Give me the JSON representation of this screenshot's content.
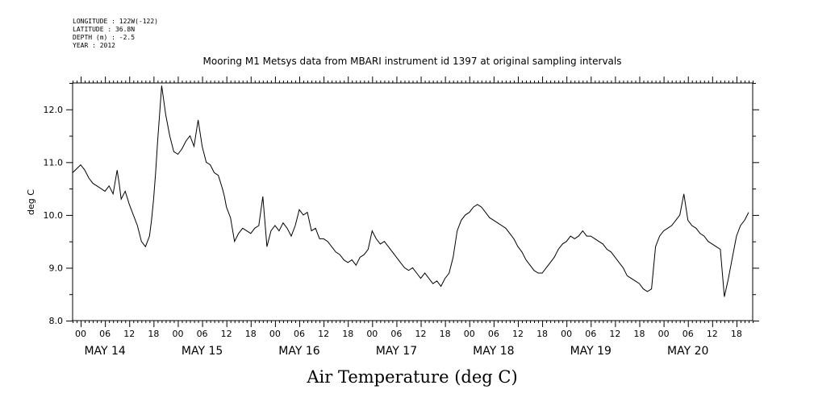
{
  "header": {
    "longitude": "LONGITUDE : 122W(-122)",
    "latitude": "LATITUDE : 36.8N",
    "depth": "DEPTH (m) : -2.5",
    "year": "YEAR : 2012"
  },
  "chart_data": {
    "type": "line",
    "title": "Mooring M1 Metsys data from MBARI instrument id 1397 at original sampling intervals",
    "ylabel": "deg C",
    "footer_label": "Air Temperature (deg C)",
    "ylim": [
      8.0,
      12.5
    ],
    "xlim_hours": [
      -2,
      166
    ],
    "y_ticks": [
      "8.0",
      "9.0",
      "10.0",
      "11.0",
      "12.0"
    ],
    "hour_tick_labels": [
      "00",
      "06",
      "12",
      "18"
    ],
    "day_labels": [
      "MAY 14",
      "MAY 15",
      "MAY 16",
      "MAY 17",
      "MAY 18",
      "MAY 19",
      "MAY 20"
    ],
    "grid": false,
    "series": [
      {
        "x_hours": [
          -2,
          0,
          1,
          2,
          3,
          4,
          5,
          6,
          7,
          8,
          9,
          9.5,
          10,
          11,
          12,
          13,
          14,
          15,
          16,
          17,
          17.5,
          18,
          18.5,
          19,
          20,
          21,
          22,
          23,
          24,
          25,
          26,
          27,
          28,
          29,
          30,
          31,
          32,
          33,
          34,
          35,
          35.5,
          36,
          37,
          38,
          39,
          40,
          41,
          42,
          43,
          44,
          45,
          46,
          47,
          48,
          49,
          50,
          51,
          52,
          53,
          54,
          55,
          56,
          57,
          58,
          59,
          60,
          61,
          62,
          63,
          64,
          65,
          66,
          67,
          68,
          69,
          70,
          71,
          72,
          73,
          74,
          75,
          76,
          77,
          78,
          79,
          80,
          81,
          82,
          83,
          84,
          85,
          86,
          87,
          88,
          89,
          90,
          91,
          92,
          93,
          94,
          95,
          96,
          97,
          98,
          99,
          100,
          101,
          102,
          103,
          104,
          105,
          106,
          107,
          108,
          109,
          110,
          111,
          112,
          113,
          114,
          115,
          116,
          117,
          118,
          119,
          120,
          121,
          122,
          123,
          124,
          125,
          126,
          127,
          128,
          129,
          130,
          131,
          132,
          133,
          134,
          135,
          136,
          137,
          138,
          139,
          140,
          141,
          142,
          143,
          144,
          145,
          146,
          147,
          148,
          149,
          150,
          151,
          152,
          153,
          154,
          155,
          156,
          157,
          158,
          159,
          160,
          161,
          162,
          163,
          164,
          165
        ],
        "values": [
          10.8,
          10.95,
          10.85,
          10.7,
          10.6,
          10.55,
          10.5,
          10.45,
          10.55,
          10.4,
          10.85,
          10.6,
          10.3,
          10.45,
          10.2,
          10.0,
          9.8,
          9.5,
          9.4,
          9.6,
          9.9,
          10.3,
          10.8,
          11.4,
          12.45,
          11.9,
          11.5,
          11.2,
          11.15,
          11.25,
          11.4,
          11.5,
          11.3,
          11.8,
          11.3,
          11.0,
          10.95,
          10.8,
          10.75,
          10.5,
          10.35,
          10.15,
          9.95,
          9.5,
          9.65,
          9.75,
          9.7,
          9.65,
          9.75,
          9.8,
          10.35,
          9.4,
          9.7,
          9.8,
          9.7,
          9.85,
          9.75,
          9.6,
          9.8,
          10.1,
          10.0,
          10.05,
          9.7,
          9.75,
          9.55,
          9.55,
          9.5,
          9.4,
          9.3,
          9.25,
          9.15,
          9.1,
          9.15,
          9.05,
          9.2,
          9.25,
          9.35,
          9.7,
          9.55,
          9.45,
          9.5,
          9.4,
          9.3,
          9.2,
          9.1,
          9.0,
          8.95,
          9.0,
          8.9,
          8.8,
          8.9,
          8.8,
          8.7,
          8.75,
          8.65,
          8.8,
          8.9,
          9.2,
          9.7,
          9.9,
          10.0,
          10.05,
          10.15,
          10.2,
          10.15,
          10.05,
          9.95,
          9.9,
          9.85,
          9.8,
          9.75,
          9.65,
          9.55,
          9.4,
          9.3,
          9.15,
          9.05,
          8.95,
          8.9,
          8.9,
          9.0,
          9.1,
          9.2,
          9.35,
          9.45,
          9.5,
          9.6,
          9.55,
          9.6,
          9.7,
          9.6,
          9.6,
          9.55,
          9.5,
          9.45,
          9.35,
          9.3,
          9.2,
          9.1,
          9.0,
          8.85,
          8.8,
          8.75,
          8.7,
          8.6,
          8.55,
          8.6,
          9.4,
          9.6,
          9.7,
          9.75,
          9.8,
          9.9,
          10.0,
          10.4,
          9.9,
          9.8,
          9.75,
          9.65,
          9.6,
          9.5,
          9.45,
          9.4,
          9.35,
          8.45,
          8.8,
          9.2,
          9.6,
          9.8,
          9.9,
          10.05
        ]
      }
    ]
  }
}
